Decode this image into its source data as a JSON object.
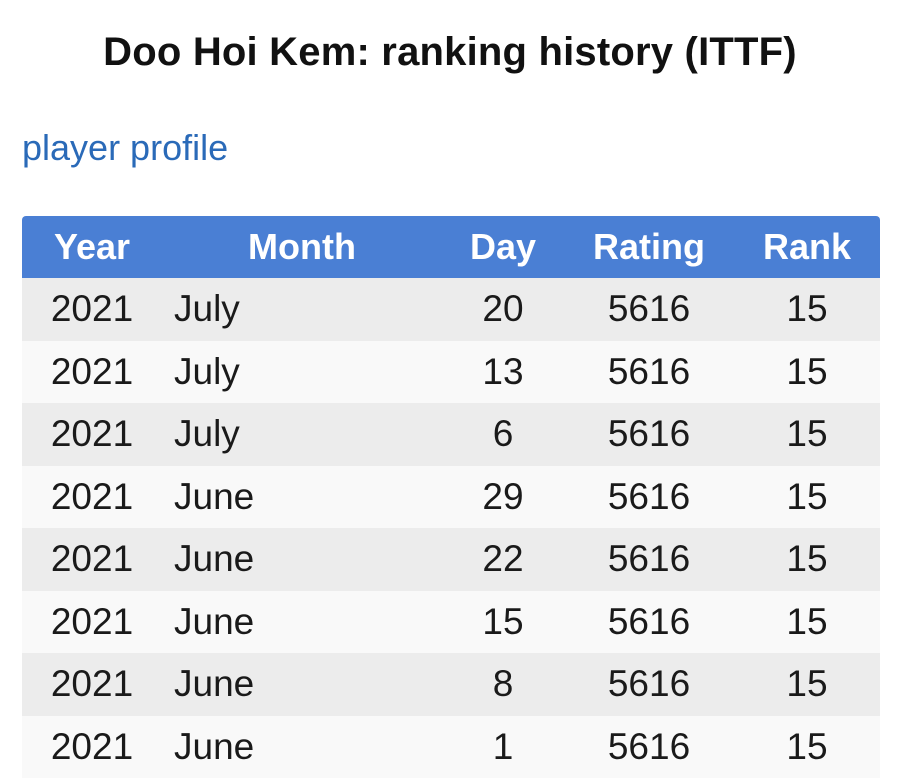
{
  "page": {
    "title": "Doo Hoi Kem: ranking history (ITTF)",
    "profile_link": "player profile"
  },
  "colors": {
    "header_bg": "#4a7fd4",
    "link": "#2a6ab8",
    "row_odd": "#ececec",
    "row_even": "#f9f9f9"
  },
  "table": {
    "headers": {
      "year": "Year",
      "month": "Month",
      "day": "Day",
      "rating": "Rating",
      "rank": "Rank"
    },
    "rows": [
      {
        "year": "2021",
        "month": "July",
        "day": "20",
        "rating": "5616",
        "rank": "15"
      },
      {
        "year": "2021",
        "month": "July",
        "day": "13",
        "rating": "5616",
        "rank": "15"
      },
      {
        "year": "2021",
        "month": "July",
        "day": "6",
        "rating": "5616",
        "rank": "15"
      },
      {
        "year": "2021",
        "month": "June",
        "day": "29",
        "rating": "5616",
        "rank": "15"
      },
      {
        "year": "2021",
        "month": "June",
        "day": "22",
        "rating": "5616",
        "rank": "15"
      },
      {
        "year": "2021",
        "month": "June",
        "day": "15",
        "rating": "5616",
        "rank": "15"
      },
      {
        "year": "2021",
        "month": "June",
        "day": "8",
        "rating": "5616",
        "rank": "15"
      },
      {
        "year": "2021",
        "month": "June",
        "day": "1",
        "rating": "5616",
        "rank": "15"
      }
    ]
  }
}
